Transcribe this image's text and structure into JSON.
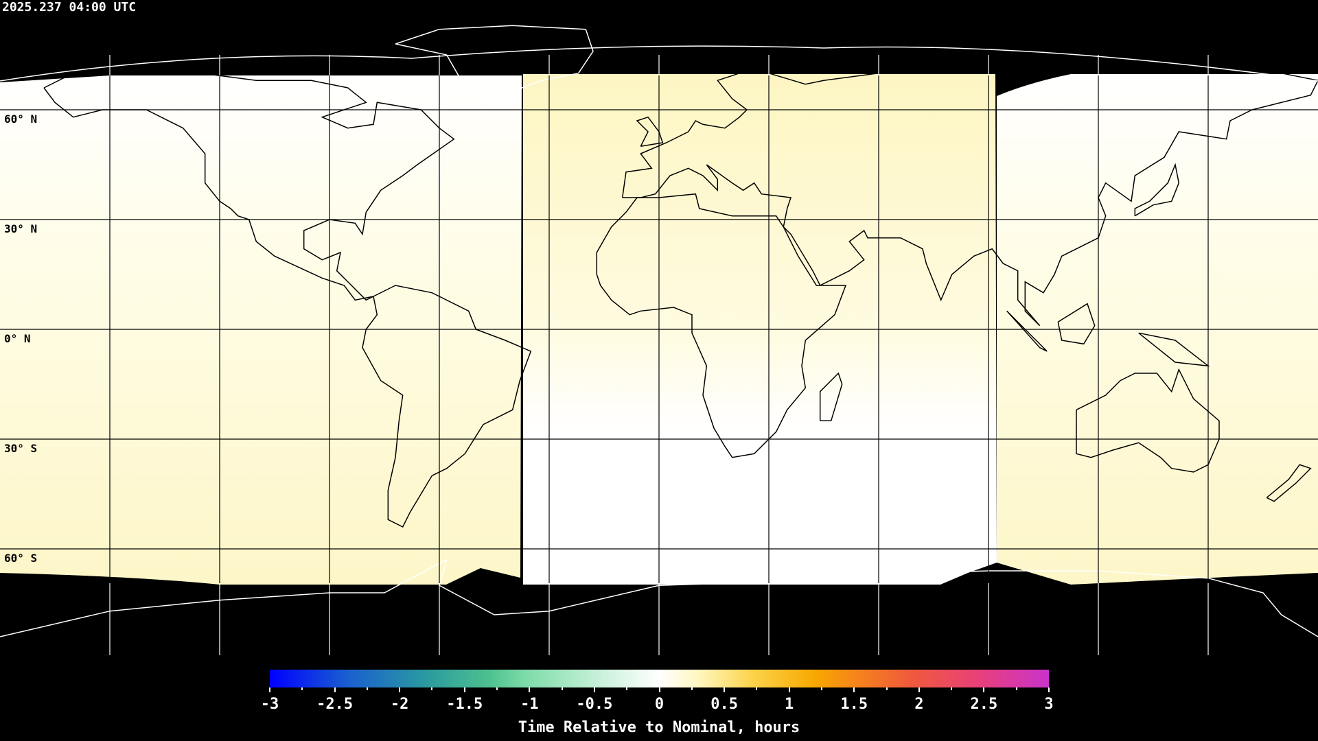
{
  "timestamp": "2025.237 04:00 UTC",
  "map": {
    "projection": "equirectangular",
    "grid_spacing_deg": 30,
    "lat_labels": [
      "60° N",
      "30° N",
      "0° N",
      "30° S",
      "60° S"
    ],
    "background_color": "#000000",
    "coastline_color_land_mask": "#000000"
  },
  "colorbar": {
    "min": -3,
    "max": 3,
    "tick_labels": [
      "-3",
      "-2.5",
      "-2",
      "-1.5",
      "-1",
      "-0.5",
      "0",
      "0.5",
      "1",
      "1.5",
      "2",
      "2.5",
      "3"
    ],
    "title": "Time Relative to Nominal, hours",
    "colors": [
      "#0000ff",
      "#2a9aa0",
      "#7fdcaa",
      "#ffffff",
      "#fcd34a",
      "#f8a800",
      "#f05b3a",
      "#c933cc"
    ]
  }
}
